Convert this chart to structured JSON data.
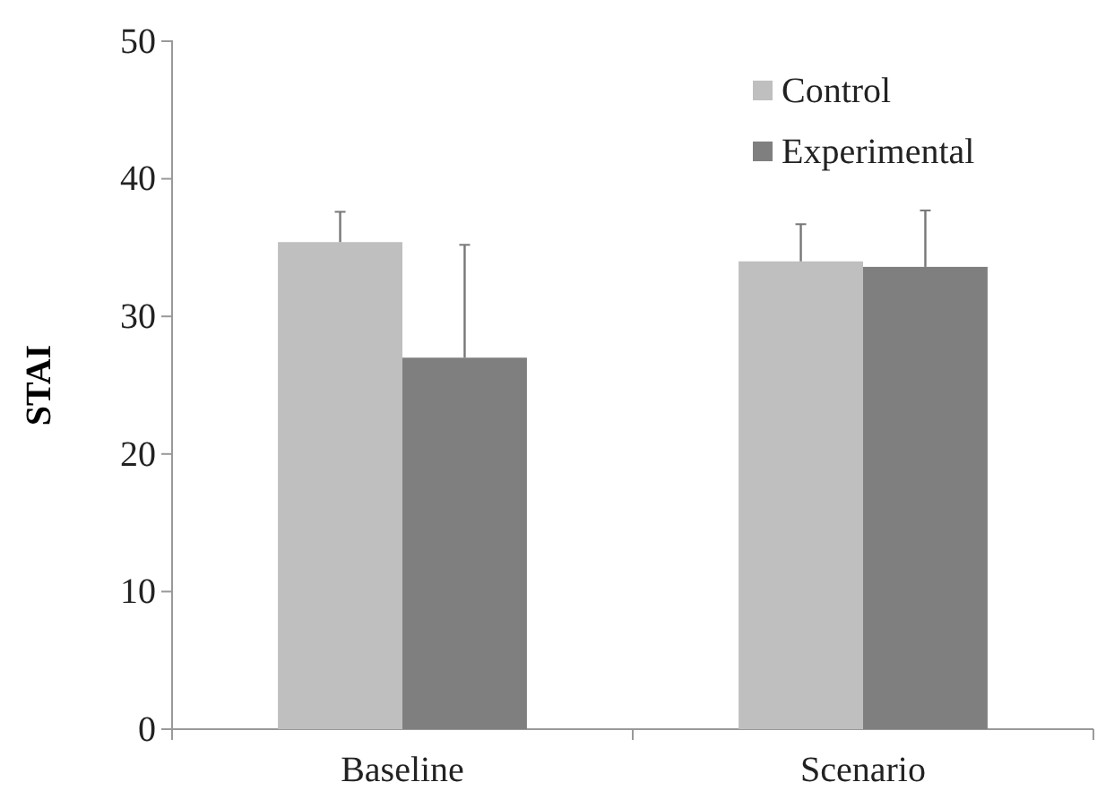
{
  "chart_data": {
    "type": "bar",
    "ylabel": "STAI",
    "categories": [
      "Baseline",
      "Scenario"
    ],
    "series": [
      {
        "name": "Control",
        "color": "#bfbfbf",
        "values": [
          35.4,
          34.0
        ],
        "errors": [
          [
            35.4,
            37.6
          ],
          [
            34.0,
            36.7
          ]
        ]
      },
      {
        "name": "Experimental",
        "color": "#7f7f7f",
        "values": [
          27.0,
          33.6
        ],
        "errors": [
          [
            27.0,
            35.2
          ],
          [
            33.6,
            37.7
          ]
        ]
      }
    ],
    "ylim": [
      0,
      50
    ],
    "yticks": [
      0,
      10,
      20,
      30,
      40,
      50
    ],
    "grid": false,
    "legend": "top right"
  }
}
